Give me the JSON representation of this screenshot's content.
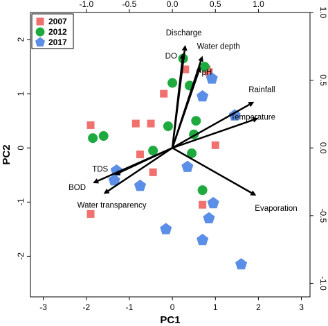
{
  "chart_data": {
    "type": "scatter",
    "subtype": "pca-biplot",
    "xlabel": "PC1",
    "ylabel": "PC2",
    "xlim": [
      -3.3,
      3.2
    ],
    "ylim": [
      -2.75,
      2.5
    ],
    "x_ticks": [
      "-3",
      "-2",
      "-1",
      "0",
      "1",
      "2",
      "3"
    ],
    "y_ticks": [
      "-2",
      "-1",
      "0",
      "1",
      "2"
    ],
    "top_ticks": [
      "-1.0",
      "-0.5",
      "0.0",
      "0.5",
      "1.0"
    ],
    "right_ticks": [
      "-1.0",
      "-0.5",
      "0.0",
      "0.5",
      "1.0"
    ],
    "loading_scale_top": [
      -1.0,
      -0.5,
      0.0,
      0.5,
      1.0
    ],
    "loading_scale_right": [
      -1.0,
      -0.5,
      0.0,
      0.5,
      1.0
    ],
    "legend_position": "top-left",
    "series": [
      {
        "name": "2007",
        "color": "#f0716e",
        "marker": "square",
        "points": [
          [
            0.3,
            1.45
          ],
          [
            0.8,
            1.45
          ],
          [
            0.85,
            1.4
          ],
          [
            -0.2,
            1.0
          ],
          [
            -1.9,
            0.42
          ],
          [
            -0.85,
            0.45
          ],
          [
            -0.5,
            0.45
          ],
          [
            1.0,
            0.05
          ],
          [
            -0.75,
            -0.12
          ],
          [
            -0.45,
            -0.45
          ],
          [
            0.7,
            -1.05
          ],
          [
            -1.9,
            -1.22
          ]
        ]
      },
      {
        "name": "2012",
        "color": "#1faa3f",
        "marker": "circle",
        "points": [
          [
            0.25,
            1.65
          ],
          [
            0.75,
            1.5
          ],
          [
            0.0,
            1.2
          ],
          [
            0.4,
            1.15
          ],
          [
            0.55,
            0.5
          ],
          [
            -0.1,
            0.4
          ],
          [
            0.5,
            0.25
          ],
          [
            -1.85,
            0.18
          ],
          [
            -1.6,
            0.22
          ],
          [
            -0.45,
            -0.05
          ],
          [
            0.45,
            -0.1
          ],
          [
            0.7,
            -0.78
          ]
        ]
      },
      {
        "name": "2017",
        "color": "#5b8ee6",
        "marker": "pentagon",
        "points": [
          [
            0.92,
            1.28
          ],
          [
            0.7,
            0.95
          ],
          [
            1.45,
            0.6
          ],
          [
            0.35,
            -0.35
          ],
          [
            -1.3,
            -0.42
          ],
          [
            -1.35,
            -0.6
          ],
          [
            -0.75,
            -0.7
          ],
          [
            0.95,
            -1.02
          ],
          [
            0.85,
            -1.3
          ],
          [
            -0.15,
            -1.5
          ],
          [
            0.7,
            -1.7
          ],
          [
            1.6,
            -2.15
          ]
        ]
      }
    ],
    "loadings": [
      {
        "name": "Discharge",
        "x": 0.3,
        "y": 1.9
      },
      {
        "name": "DO",
        "x": 0.25,
        "y": 1.75
      },
      {
        "name": "Water depth",
        "x": 0.7,
        "y": 1.7
      },
      {
        "name": "pH",
        "x": 0.65,
        "y": 1.5
      },
      {
        "name": "Rainfall",
        "x": 1.9,
        "y": 0.85
      },
      {
        "name": "Temperature",
        "x": 2.0,
        "y": 0.55
      },
      {
        "name": "Evaporation",
        "x": 1.95,
        "y": -0.88
      },
      {
        "name": "TDS",
        "x": -1.35,
        "y": -0.5
      },
      {
        "name": "BOD",
        "x": -1.85,
        "y": -0.65
      },
      {
        "name": "Water transparency",
        "x": -1.6,
        "y": -0.85
      }
    ]
  },
  "colors": {
    "arrow": "#000000",
    "axes": "#000000",
    "background": "#ffffff"
  }
}
